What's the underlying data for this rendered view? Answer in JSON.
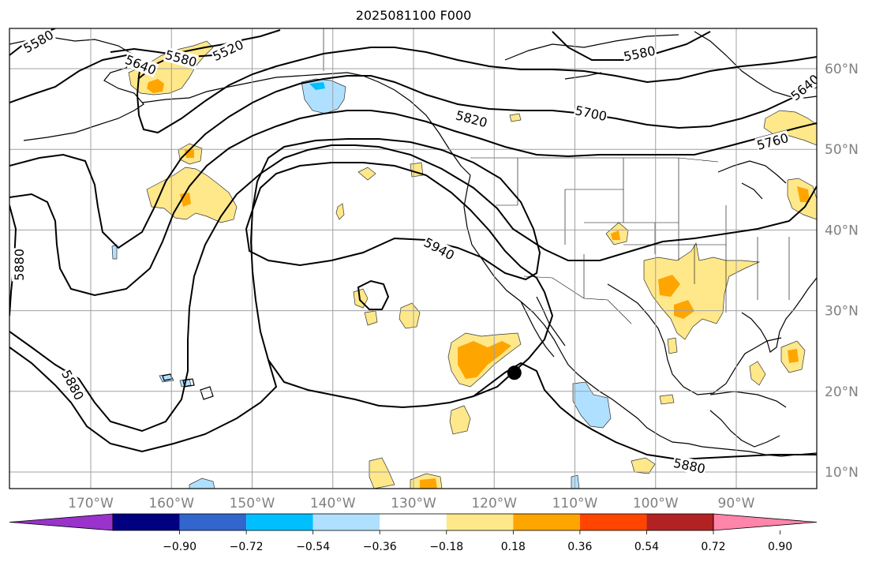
{
  "title": "2025081100 F000",
  "map": {
    "lon_range": [
      -180,
      -80
    ],
    "lat_range": [
      8,
      65
    ],
    "lon_ticks": [
      {
        "lon": -170,
        "label": "170°W"
      },
      {
        "lon": -160,
        "label": "160°W"
      },
      {
        "lon": -150,
        "label": "150°W"
      },
      {
        "lon": -140,
        "label": "140°W"
      },
      {
        "lon": -130,
        "label": "130°W"
      },
      {
        "lon": -120,
        "label": "120°W"
      },
      {
        "lon": -110,
        "label": "110°W"
      },
      {
        "lon": -100,
        "label": "100°W"
      },
      {
        "lon": -90,
        "label": "90°W"
      }
    ],
    "lat_ticks": [
      {
        "lat": 60,
        "label": "60°N"
      },
      {
        "lat": 50,
        "label": "50°N"
      },
      {
        "lat": 40,
        "label": "40°N"
      },
      {
        "lat": 30,
        "label": "30°N"
      },
      {
        "lat": 20,
        "label": "20°N"
      },
      {
        "lat": 10,
        "label": "10°N"
      }
    ],
    "grid": true,
    "marker": {
      "lon": -117.5,
      "lat": 22.3,
      "color": "#000000"
    },
    "contour_labels": [
      {
        "text": "5580",
        "lon": -176.5,
        "lat": 63.4,
        "rot": -30
      },
      {
        "text": "5640",
        "lon": -163.8,
        "lat": 60.5,
        "rot": 22
      },
      {
        "text": "5580",
        "lon": -158.8,
        "lat": 61.3,
        "rot": 15
      },
      {
        "text": "5520",
        "lon": -153.0,
        "lat": 62.3,
        "rot": -25
      },
      {
        "text": "5580",
        "lon": -102.0,
        "lat": 61.9,
        "rot": -12
      },
      {
        "text": "5640",
        "lon": -81.5,
        "lat": 57.7,
        "rot": -40
      },
      {
        "text": "5700",
        "lon": -108.0,
        "lat": 54.5,
        "rot": 12
      },
      {
        "text": "5820",
        "lon": -122.8,
        "lat": 53.8,
        "rot": 15
      },
      {
        "text": "5760",
        "lon": -85.5,
        "lat": 51.0,
        "rot": -15
      },
      {
        "text": "5940",
        "lon": -126.8,
        "lat": 37.7,
        "rot": 28
      },
      {
        "text": "5880",
        "lon": -178.9,
        "lat": 35.7,
        "rot": -90
      },
      {
        "text": "5880",
        "lon": -172.2,
        "lat": 20.8,
        "rot": 62
      },
      {
        "text": "5880",
        "lon": -95.8,
        "lat": 10.8,
        "rot": 12
      }
    ]
  },
  "colorbar": {
    "colors": [
      "#9933cc",
      "#000080",
      "#3366cc",
      "#00bfff",
      "#b0e0ff",
      "#ffffff",
      "#ffe88a",
      "#ffa500",
      "#ff4500",
      "#b22222",
      "#ff85aa"
    ],
    "tick_labels": [
      "−0.90",
      "−0.72",
      "−0.54",
      "−0.36",
      "−0.18",
      "0.18",
      "0.36",
      "0.54",
      "0.72",
      "0.90"
    ]
  },
  "colors": {
    "light_yellow": "#ffe88a",
    "orange": "#ffa500",
    "light_blue": "#b0e0ff",
    "deep_sky_blue": "#00bfff",
    "contour": "#000000",
    "grid": "#a0a0a0"
  }
}
